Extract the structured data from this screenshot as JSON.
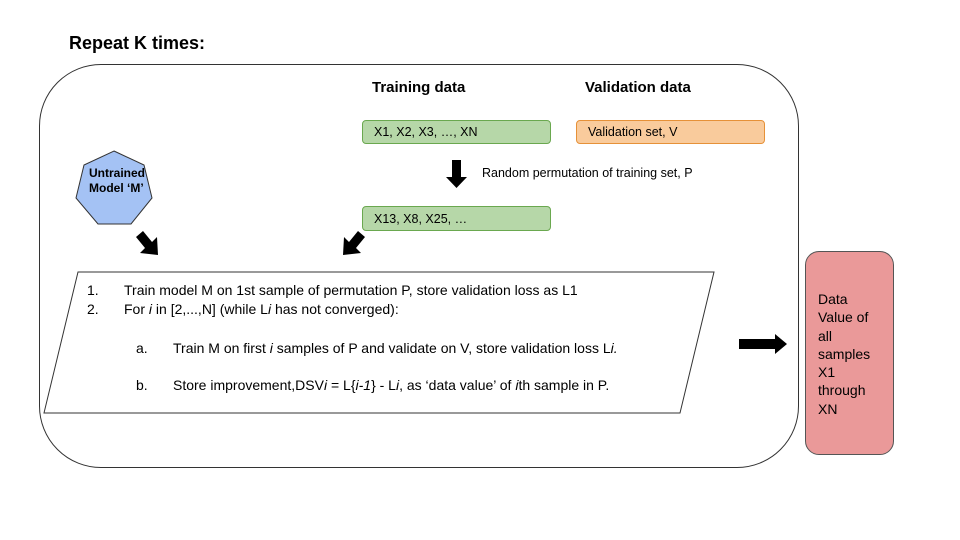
{
  "title": "Repeat K times:",
  "training": {
    "header": "Training data",
    "set_label": "X1, X2, X3, …, XN",
    "permutation_note": "Random permutation of training set, P",
    "permuted_label": "X13, X8, X25, …"
  },
  "validation": {
    "header": "Validation data",
    "set_label": "Validation set, V"
  },
  "model": {
    "line1": "Untrained",
    "line2": "Model ‘M’"
  },
  "steps": {
    "s1_num": "1.",
    "s1_text": "Train model M on 1st sample of permutation P, store validation loss as L1",
    "s2_num": "2.",
    "s2_pre": "For ",
    "s2_i": "i",
    "s2_post": " in [2,...,N] (while L",
    "s2_i2": "i",
    "s2_end": " has not converged):",
    "a_num": "a.",
    "a_pre": "Train M on first ",
    "a_i": "i",
    "a_mid": " samples of P and validate on V, store validation loss L",
    "a_i2": "i.",
    "b_num": "b.",
    "b_pre": "Store improvement,DSV",
    "b_i": "i",
    "b_mid": " = L{",
    "b_im1": "i-1",
    "b_mid2": "} - L",
    "b_i2": "i",
    "b_mid3": ", as ‘data value’ of ",
    "b_i3": "i",
    "b_end": "th sample in P."
  },
  "output": {
    "lines": [
      "Data",
      "Value of",
      "all",
      "samples",
      "X1",
      "through",
      "XN"
    ]
  },
  "colors": {
    "green": "#b6d7a8",
    "orange": "#f9cb9c",
    "model_blue": "#a4c2f4",
    "output_red": "#ea9999"
  }
}
